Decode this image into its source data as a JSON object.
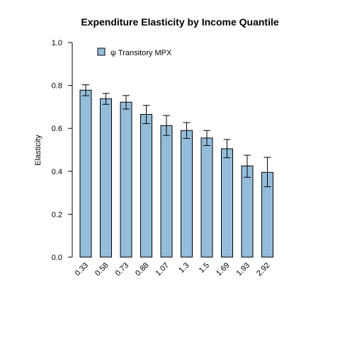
{
  "chart_data": {
    "type": "bar",
    "title": "Expenditure Elasticity  by  Income Quantile",
    "ylabel": "Elasticity",
    "xlabel": "",
    "ylim": [
      0,
      1.0
    ],
    "yticks": [
      "0.0",
      "0.2",
      "0.4",
      "0.6",
      "0.8",
      "1.0"
    ],
    "ytick_values": [
      0,
      0.2,
      0.4,
      0.6,
      0.8,
      1.0
    ],
    "categories": [
      "0.33",
      "0.58",
      "0.73",
      "0.88",
      "1.07",
      "1.3",
      "1.5",
      "1.69",
      "1.93",
      "2.92"
    ],
    "series": [
      {
        "name": "ψ Transitory MPX",
        "color": "#93BDDA",
        "values": [
          0.778,
          0.738,
          0.722,
          0.665,
          0.613,
          0.59,
          0.555,
          0.505,
          0.425,
          0.395
        ],
        "err_low": [
          0.752,
          0.712,
          0.69,
          0.622,
          0.567,
          0.553,
          0.52,
          0.463,
          0.372,
          0.328
        ],
        "err_high": [
          0.803,
          0.763,
          0.753,
          0.707,
          0.66,
          0.627,
          0.59,
          0.548,
          0.475,
          0.465
        ]
      }
    ],
    "legend_position": "top-left",
    "grid": false
  }
}
